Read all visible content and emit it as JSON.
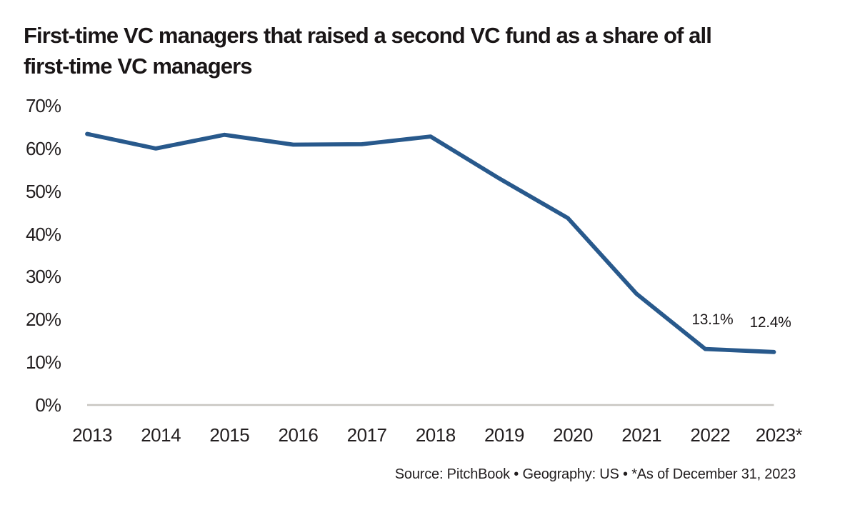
{
  "title_lines": [
    "First-time VC managers that raised a second VC fund as a share of all",
    "first-time VC managers"
  ],
  "footer": {
    "text": "Source: PitchBook  •  Geography: US  •  *As of December 31, 2023"
  },
  "colors": {
    "line": "#28598c",
    "axis_line": "#c8c5c1",
    "title_text": "#1a1617",
    "tick_text": "#231f20"
  },
  "chart_data": {
    "type": "line",
    "title": "First-time VC managers that raised a second VC fund as a share of all first-time VC managers",
    "categories": [
      "2013",
      "2014",
      "2015",
      "2016",
      "2017",
      "2018",
      "2019",
      "2020",
      "2021",
      "2022",
      "2023*"
    ],
    "series": [
      {
        "name": "Share of first-time VC managers that raised a second VC fund",
        "values": [
          63.4,
          60.0,
          63.2,
          60.9,
          61.0,
          62.8,
          53.0,
          43.7,
          26.0,
          13.1,
          12.4
        ]
      }
    ],
    "yticks": [
      0,
      10,
      20,
      30,
      40,
      50,
      60,
      70
    ],
    "ytick_suffix": "%",
    "ylim": [
      0,
      70
    ],
    "xlabel": "",
    "ylabel": "",
    "grid": false,
    "legend": "none",
    "annotations": [
      {
        "category": "2022",
        "label": "13.1%"
      },
      {
        "category": "2023*",
        "label": "12.4%"
      }
    ],
    "source_note": "Source: PitchBook • Geography: US • *As of December 31, 2023"
  }
}
